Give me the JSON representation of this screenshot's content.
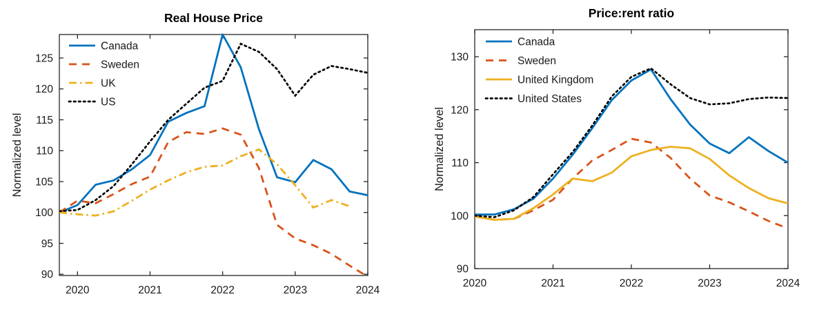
{
  "figure": {
    "background": "#ffffff",
    "description": "Two MATLAB-style line charts comparing housing metrics across countries, quarterly data indexed to 100"
  },
  "colors": {
    "canada": "#0072BD",
    "sweden": "#D95319",
    "uk": "#EDB120",
    "us": "#000000",
    "axis": "#262626"
  },
  "chart_data": [
    {
      "type": "line",
      "title": "Real House Price",
      "xlabel": "",
      "ylabel": "Normalized level",
      "grid": false,
      "legend_position": "top-left",
      "xlim": [
        2019.75,
        2024
      ],
      "ylim": [
        89.8,
        128.8
      ],
      "xticks": [
        2020,
        2021,
        2022,
        2023,
        2024
      ],
      "xtick_labels": [
        "2020",
        "2021",
        "2022",
        "2023",
        "2024"
      ],
      "yticks": [
        90,
        95,
        100,
        105,
        110,
        115,
        120,
        125
      ],
      "ytick_labels": [
        "90",
        "95",
        "100",
        "105",
        "110",
        "115",
        "120",
        "125"
      ],
      "x": [
        2019.75,
        2020,
        2020.25,
        2020.5,
        2020.75,
        2021,
        2021.25,
        2021.5,
        2021.75,
        2022,
        2022.25,
        2022.5,
        2022.75,
        2023,
        2023.25,
        2023.5,
        2023.75,
        2024
      ],
      "series": [
        {
          "name": "Canada",
          "color": "#0072BD",
          "style": "solid",
          "values": [
            100,
            101.2,
            104.5,
            105.2,
            107.0,
            109.3,
            114.7,
            116.1,
            117.2,
            128.8,
            123.5,
            113.5,
            105.7,
            104.9,
            108.5,
            107.0,
            103.4,
            102.8
          ]
        },
        {
          "name": "Sweden",
          "color": "#D95319",
          "style": "dashed",
          "values": [
            100,
            101.9,
            101.5,
            103.0,
            104.6,
            105.8,
            111.4,
            113.0,
            112.7,
            113.6,
            112.6,
            107.2,
            98.0,
            95.8,
            94.7,
            93.3,
            91.4,
            89.6
          ]
        },
        {
          "name": "UK",
          "color": "#EDB120",
          "style": "dashdot",
          "values": [
            100,
            99.7,
            99.5,
            100.2,
            101.9,
            103.7,
            105.2,
            106.5,
            107.4,
            107.6,
            109.1,
            110.2,
            107.8,
            104.4,
            100.8,
            102.0,
            101.0,
            null
          ]
        },
        {
          "name": "US",
          "color": "#000000",
          "style": "dotted",
          "values": [
            100.2,
            100.4,
            102.0,
            104.3,
            107.8,
            111.5,
            115.0,
            117.6,
            120.2,
            121.3,
            127.3,
            126.0,
            123.2,
            118.9,
            122.3,
            123.7,
            123.2,
            122.6
          ]
        }
      ]
    },
    {
      "type": "line",
      "title": "Price:rent ratio",
      "xlabel": "",
      "ylabel": "Normalized level",
      "grid": false,
      "legend_position": "top-left",
      "xlim": [
        2020,
        2024
      ],
      "ylim": [
        90,
        135.1
      ],
      "xticks": [
        2020,
        2021,
        2022,
        2023,
        2024
      ],
      "xtick_labels": [
        "2020",
        "2021",
        "2022",
        "2023",
        "2024"
      ],
      "yticks": [
        90,
        100,
        110,
        120,
        130
      ],
      "ytick_labels": [
        "90",
        "100",
        "110",
        "120",
        "130"
      ],
      "x": [
        2020,
        2020.25,
        2020.5,
        2020.75,
        2021,
        2021.25,
        2021.5,
        2021.75,
        2022,
        2022.25,
        2022.5,
        2022.75,
        2023,
        2023.25,
        2023.5,
        2023.75,
        2024
      ],
      "series": [
        {
          "name": "Canada",
          "color": "#0072BD",
          "style": "solid",
          "values": [
            100.2,
            100.2,
            101.2,
            103.2,
            107.0,
            111.5,
            116.5,
            121.8,
            125.5,
            127.6,
            122.0,
            117.2,
            113.6,
            111.8,
            114.8,
            112.2,
            110.0
          ]
        },
        {
          "name": "Sweden",
          "color": "#D95319",
          "style": "dashed",
          "values": [
            99.9,
            99.2,
            99.4,
            101.0,
            103.0,
            107.0,
            110.4,
            112.4,
            114.5,
            113.8,
            110.9,
            107.0,
            103.8,
            102.5,
            100.8,
            99.0,
            97.6
          ]
        },
        {
          "name": "United Kingdom",
          "color": "#EDB120",
          "style": "solid",
          "values": [
            99.8,
            99.2,
            99.4,
            101.4,
            104.0,
            107.0,
            106.5,
            108.1,
            111.2,
            112.4,
            113.0,
            112.7,
            110.7,
            107.6,
            105.2,
            103.3,
            102.3
          ]
        },
        {
          "name": "United States",
          "color": "#000000",
          "style": "dotted",
          "values": [
            100.0,
            99.7,
            101.0,
            103.5,
            107.8,
            112.0,
            117.0,
            122.5,
            126.2,
            127.8,
            124.8,
            122.2,
            121.0,
            121.2,
            122.0,
            122.3,
            122.2
          ]
        }
      ]
    }
  ]
}
